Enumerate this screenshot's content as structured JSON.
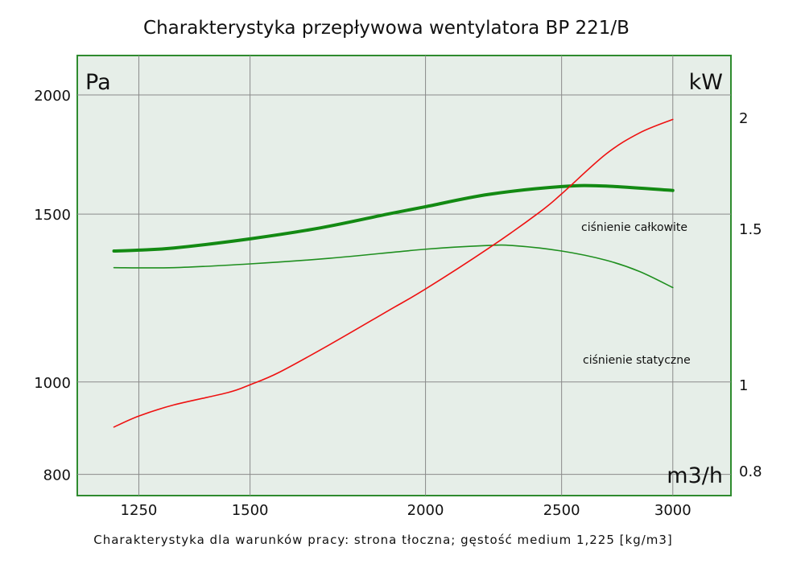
{
  "chart_data": {
    "type": "line",
    "title": "Charakterystyka przepływowa wentylatora BP 221/B",
    "footnote": "Charakterystyka dla warunków pracy: strona tłoczna; gęstość medium 1,225 [kg/m3]",
    "xlabel": "m3/h",
    "ylabel_left": "Pa",
    "ylabel_right": "kW",
    "x_scale": "log",
    "y_scale": "log",
    "xlim": [
      1130,
      3300
    ],
    "ylim_left": [
      760,
      2200
    ],
    "ylim_right": [
      0.75,
      2.35
    ],
    "x_ticks": [
      "1250",
      "1500",
      "2000",
      "2500",
      "3000"
    ],
    "y_ticks_left": [
      "800",
      "1000",
      "1500",
      "2000"
    ],
    "y_ticks_right": [
      "0.8",
      "1",
      "1.5",
      "2"
    ],
    "grid": true,
    "background": "#e6eee8",
    "frame_color": "#2e8b2e",
    "series": [
      {
        "name": "ciśnienie całkowite",
        "axis": "left",
        "color": "#138a13",
        "width": 4,
        "x": [
          1200,
          1250,
          1324,
          1500,
          1684,
          1880,
          2000,
          2218,
          2500,
          2688,
          3000
        ],
        "y": [
          1372,
          1375,
          1382,
          1413,
          1451,
          1500,
          1527,
          1573,
          1603,
          1605,
          1588
        ]
      },
      {
        "name": "ciśnienie statyczne",
        "axis": "left",
        "color": "#1f8f1f",
        "width": 1.6,
        "x": [
          1200,
          1324,
          1500,
          1708,
          2000,
          2203,
          2311,
          2500,
          2688,
          2840,
          3000
        ],
        "y": [
          1318,
          1318,
          1330,
          1348,
          1378,
          1390,
          1390,
          1372,
          1342,
          1306,
          1256
        ]
      },
      {
        "axis": "right",
        "color": "#ee1111",
        "width": 1.6,
        "x": [
          1200,
          1250,
          1324,
          1447,
          1500,
          1572,
          1708,
          1880,
          2000,
          2218,
          2409,
          2500,
          2688,
          2840,
          3000
        ],
        "y": [
          0.896,
          0.922,
          0.949,
          0.98,
          1.0,
          1.032,
          1.109,
          1.211,
          1.282,
          1.425,
          1.563,
          1.641,
          1.819,
          1.922,
          1.991
        ]
      }
    ]
  }
}
